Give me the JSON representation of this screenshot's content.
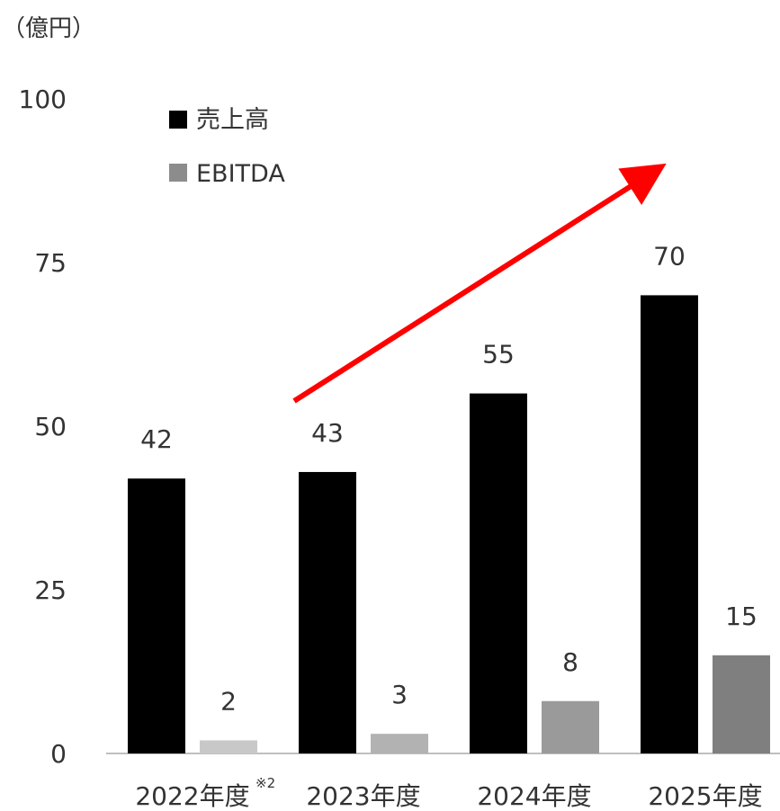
{
  "chart_data": {
    "type": "bar",
    "unit_label": "（億円）",
    "categories": [
      "2022年度",
      "2023年度",
      "2024年度",
      "2025年度"
    ],
    "category_notes": [
      "※2",
      "",
      "",
      ""
    ],
    "series": [
      {
        "name": "売上高",
        "values": [
          42,
          43,
          55,
          70
        ],
        "colors": [
          "#000000",
          "#000000",
          "#000000",
          "#000000"
        ]
      },
      {
        "name": "EBITDA",
        "values": [
          2,
          3,
          8,
          15
        ],
        "colors": [
          "#c8c8c8",
          "#b2b2b2",
          "#9a9a9a",
          "#7f7f7f"
        ]
      }
    ],
    "legend_colors": [
      "#000000",
      "#8c8c8c"
    ],
    "yticks": [
      0,
      25,
      50,
      75,
      100
    ],
    "ylim": [
      0,
      100
    ],
    "grid": false,
    "legend_position": "top-left",
    "annotations": [
      {
        "type": "arrow",
        "color": "#ff0000",
        "direction": "up-right"
      }
    ]
  }
}
